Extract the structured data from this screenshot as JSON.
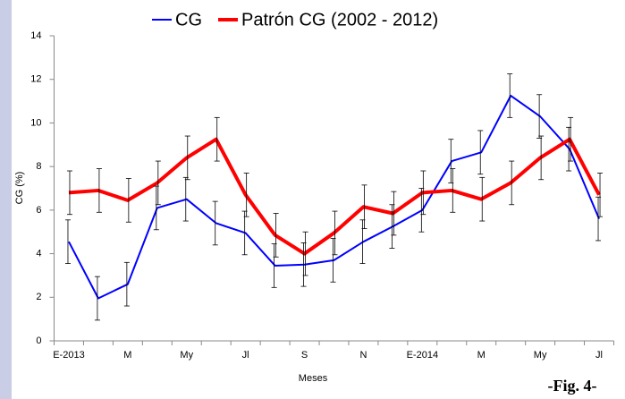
{
  "chart_data": {
    "type": "line",
    "categories": [
      "E-2013",
      null,
      "M",
      null,
      "My",
      null,
      "Jl",
      null,
      "S",
      null,
      "N",
      null,
      "E-2014",
      null,
      "M",
      null,
      "My",
      null,
      "Jl"
    ],
    "series": [
      {
        "name": "CG",
        "color": "#0000ff",
        "line_width": 2,
        "values": [
          4.55,
          1.95,
          2.6,
          6.1,
          6.5,
          5.4,
          4.95,
          3.45,
          3.5,
          3.7,
          4.55,
          5.25,
          6.0,
          8.25,
          8.65,
          11.25,
          10.3,
          8.8,
          5.6
        ],
        "errors": [
          1,
          1,
          1,
          1,
          1,
          1,
          1,
          1,
          1,
          1,
          1,
          1,
          1,
          1,
          1,
          1,
          1,
          1,
          1
        ]
      },
      {
        "name": "Patrón CG (2002 - 2012)",
        "color": "#ff0000",
        "line_width": 4,
        "values": [
          6.8,
          6.9,
          6.45,
          7.25,
          8.4,
          9.25,
          6.7,
          4.85,
          4.0,
          4.95,
          6.15,
          5.85,
          6.8,
          6.9,
          6.5,
          7.25,
          8.4,
          9.25,
          6.7
        ],
        "errors": [
          1,
          1,
          1,
          1,
          1,
          1,
          1,
          1,
          1,
          1,
          1,
          1,
          1,
          1,
          1,
          1,
          1,
          1,
          1
        ]
      }
    ],
    "ylim": [
      0,
      14
    ],
    "yticks": [
      0,
      2,
      4,
      6,
      8,
      10,
      12,
      14
    ],
    "xlabel": "Meses",
    "ylabel": "CG (%)",
    "grid": false,
    "legend": "top"
  },
  "figure_label": "-Fig. 4-"
}
